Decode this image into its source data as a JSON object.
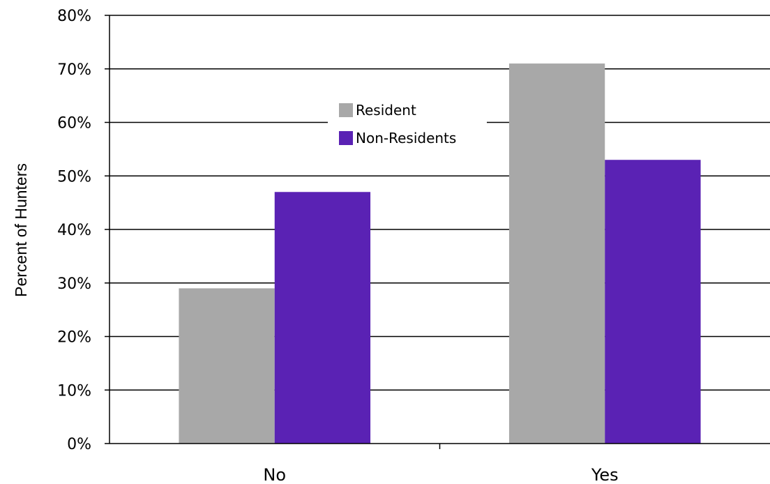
{
  "chart_data": {
    "type": "bar",
    "categories": [
      "No",
      "Yes"
    ],
    "series": [
      {
        "name": "Resident",
        "values": [
          29,
          71
        ],
        "color": "#a8a8a8"
      },
      {
        "name": "Non-Residents",
        "values": [
          47,
          53
        ],
        "color": "#5a22b4"
      }
    ],
    "ylabel": "Percent of Hunters",
    "ylim": [
      0,
      80
    ],
    "yticks": [
      0,
      10,
      20,
      30,
      40,
      50,
      60,
      70,
      80
    ],
    "ytick_labels": [
      "0%",
      "10%",
      "20%",
      "30%",
      "40%",
      "50%",
      "60%",
      "70%",
      "80%"
    ],
    "grid": true,
    "legend_position": "top-center"
  }
}
